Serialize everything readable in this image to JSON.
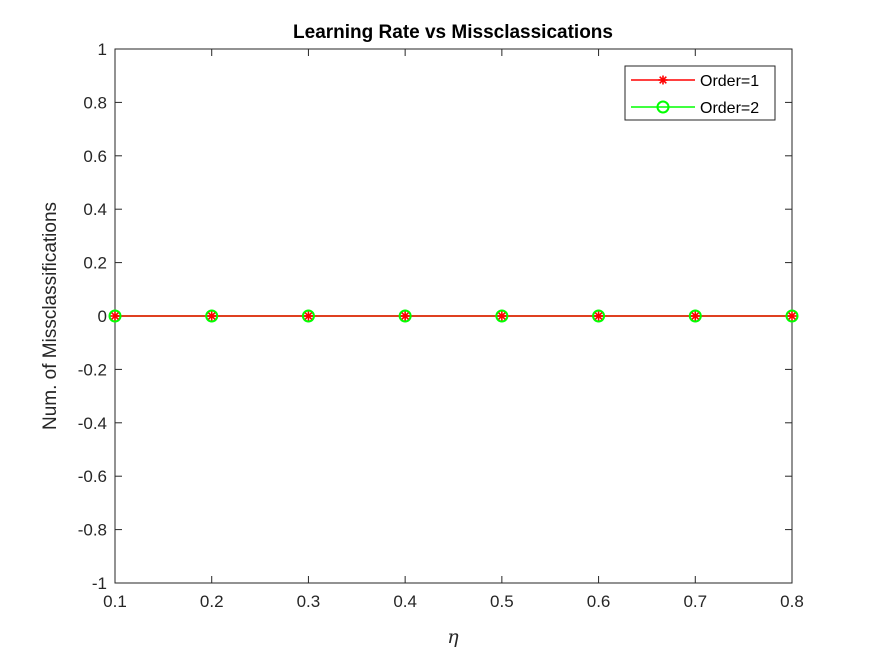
{
  "chart_data": {
    "type": "line",
    "title": "Learning Rate vs Missclassications",
    "xlabel": "η",
    "ylabel": "Num. of Missclassifications",
    "xlim": [
      0.1,
      0.8
    ],
    "ylim": [
      -1,
      1
    ],
    "x_ticks": [
      "0.1",
      "0.2",
      "0.3",
      "0.4",
      "0.5",
      "0.6",
      "0.7",
      "0.8"
    ],
    "y_ticks": [
      "-1",
      "-0.8",
      "-0.6",
      "-0.4",
      "-0.2",
      "0",
      "0.2",
      "0.4",
      "0.6",
      "0.8",
      "1"
    ],
    "x": [
      0.1,
      0.2,
      0.3,
      0.4,
      0.5,
      0.6,
      0.7,
      0.8
    ],
    "series": [
      {
        "name": "Order=1",
        "values": [
          0,
          0,
          0,
          0,
          0,
          0,
          0,
          0
        ],
        "color": "#ff0000",
        "marker": "asterisk"
      },
      {
        "name": "Order=2",
        "values": [
          0,
          0,
          0,
          0,
          0,
          0,
          0,
          0
        ],
        "color": "#00ff00",
        "marker": "circle"
      }
    ],
    "legend_position": "top-right",
    "grid": false,
    "box": true
  }
}
